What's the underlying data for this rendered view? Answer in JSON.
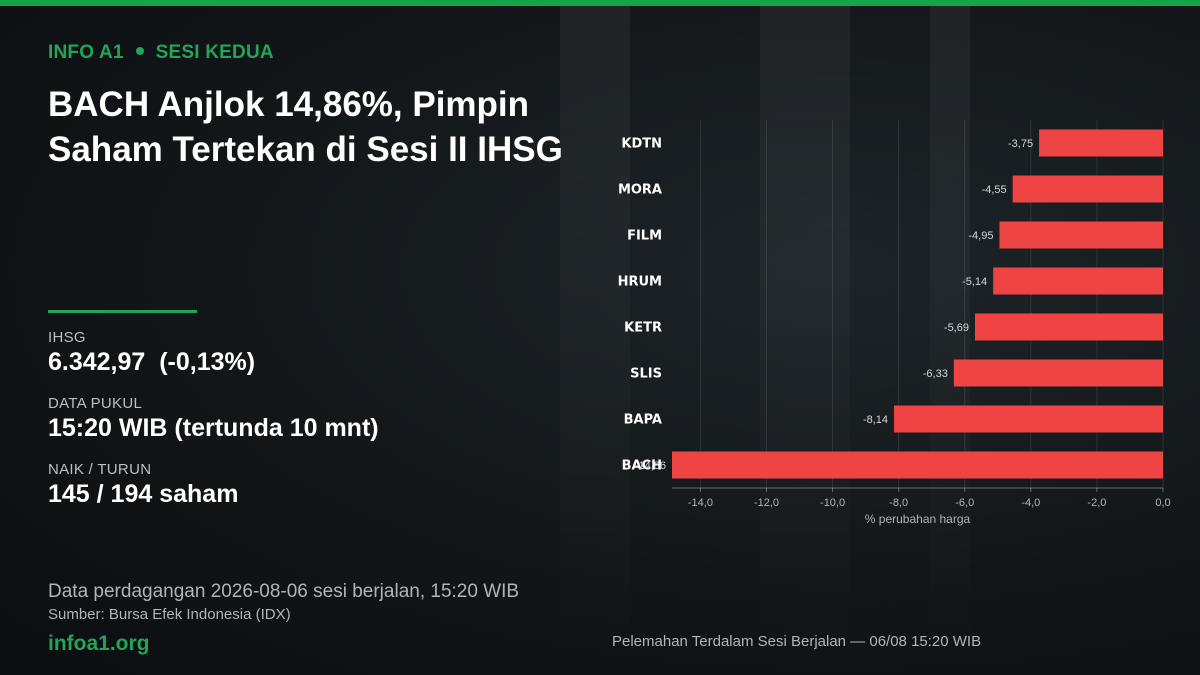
{
  "header": {
    "kicker_source": "INFO A1",
    "kicker_session": "SESI KEDUA",
    "title": "BACH Anjlok 14,86%, Pimpin Saham Tertekan di Sesi II IHSG"
  },
  "stats": {
    "ihsg_label": "IHSG",
    "ihsg_value": "6.342,97  (-0,13%)",
    "time_label": "DATA PUKUL",
    "time_value": "15:20 WIB (tertunda 10 mnt)",
    "breadth_label": "NAIK / TURUN",
    "breadth_value": "145 / 194 saham"
  },
  "footer": {
    "note": "Data perdagangan 2026-08-06 sesi berjalan, 15:20 WIB",
    "source": "Sumber: Bursa Efek Indonesia (IDX)",
    "brand": "infoa1.org",
    "chart_caption": "Pelemahan Terdalam Sesi Berjalan — 06/08 15:20 WIB"
  },
  "colors": {
    "accent": "#22a559",
    "bar": "#ef4444",
    "topbar": "#16a34a"
  },
  "chart_data": {
    "type": "bar",
    "orientation": "horizontal",
    "categories": [
      "KDTN",
      "MORA",
      "FILM",
      "HRUM",
      "KETR",
      "SLIS",
      "BAPA",
      "BACH"
    ],
    "values": [
      -3.75,
      -4.55,
      -4.95,
      -5.14,
      -5.69,
      -6.33,
      -8.14,
      -14.86
    ],
    "data_labels": [
      "-3,75",
      "-4,55",
      "-4,95",
      "-5,14",
      "-5,69",
      "-6,33",
      "-8,14",
      "-14,86"
    ],
    "xlabel": "% perubahan harga",
    "xlim": [
      -14.86,
      0
    ],
    "xticks": [
      -14,
      -12,
      -10,
      -8,
      -6,
      -4,
      -2,
      0
    ],
    "xtick_labels": [
      "-14,0",
      "-12,0",
      "-10,0",
      "-8,0",
      "-6,0",
      "-4,0",
      "-2,0",
      "0,0"
    ],
    "grid": "vertical"
  }
}
